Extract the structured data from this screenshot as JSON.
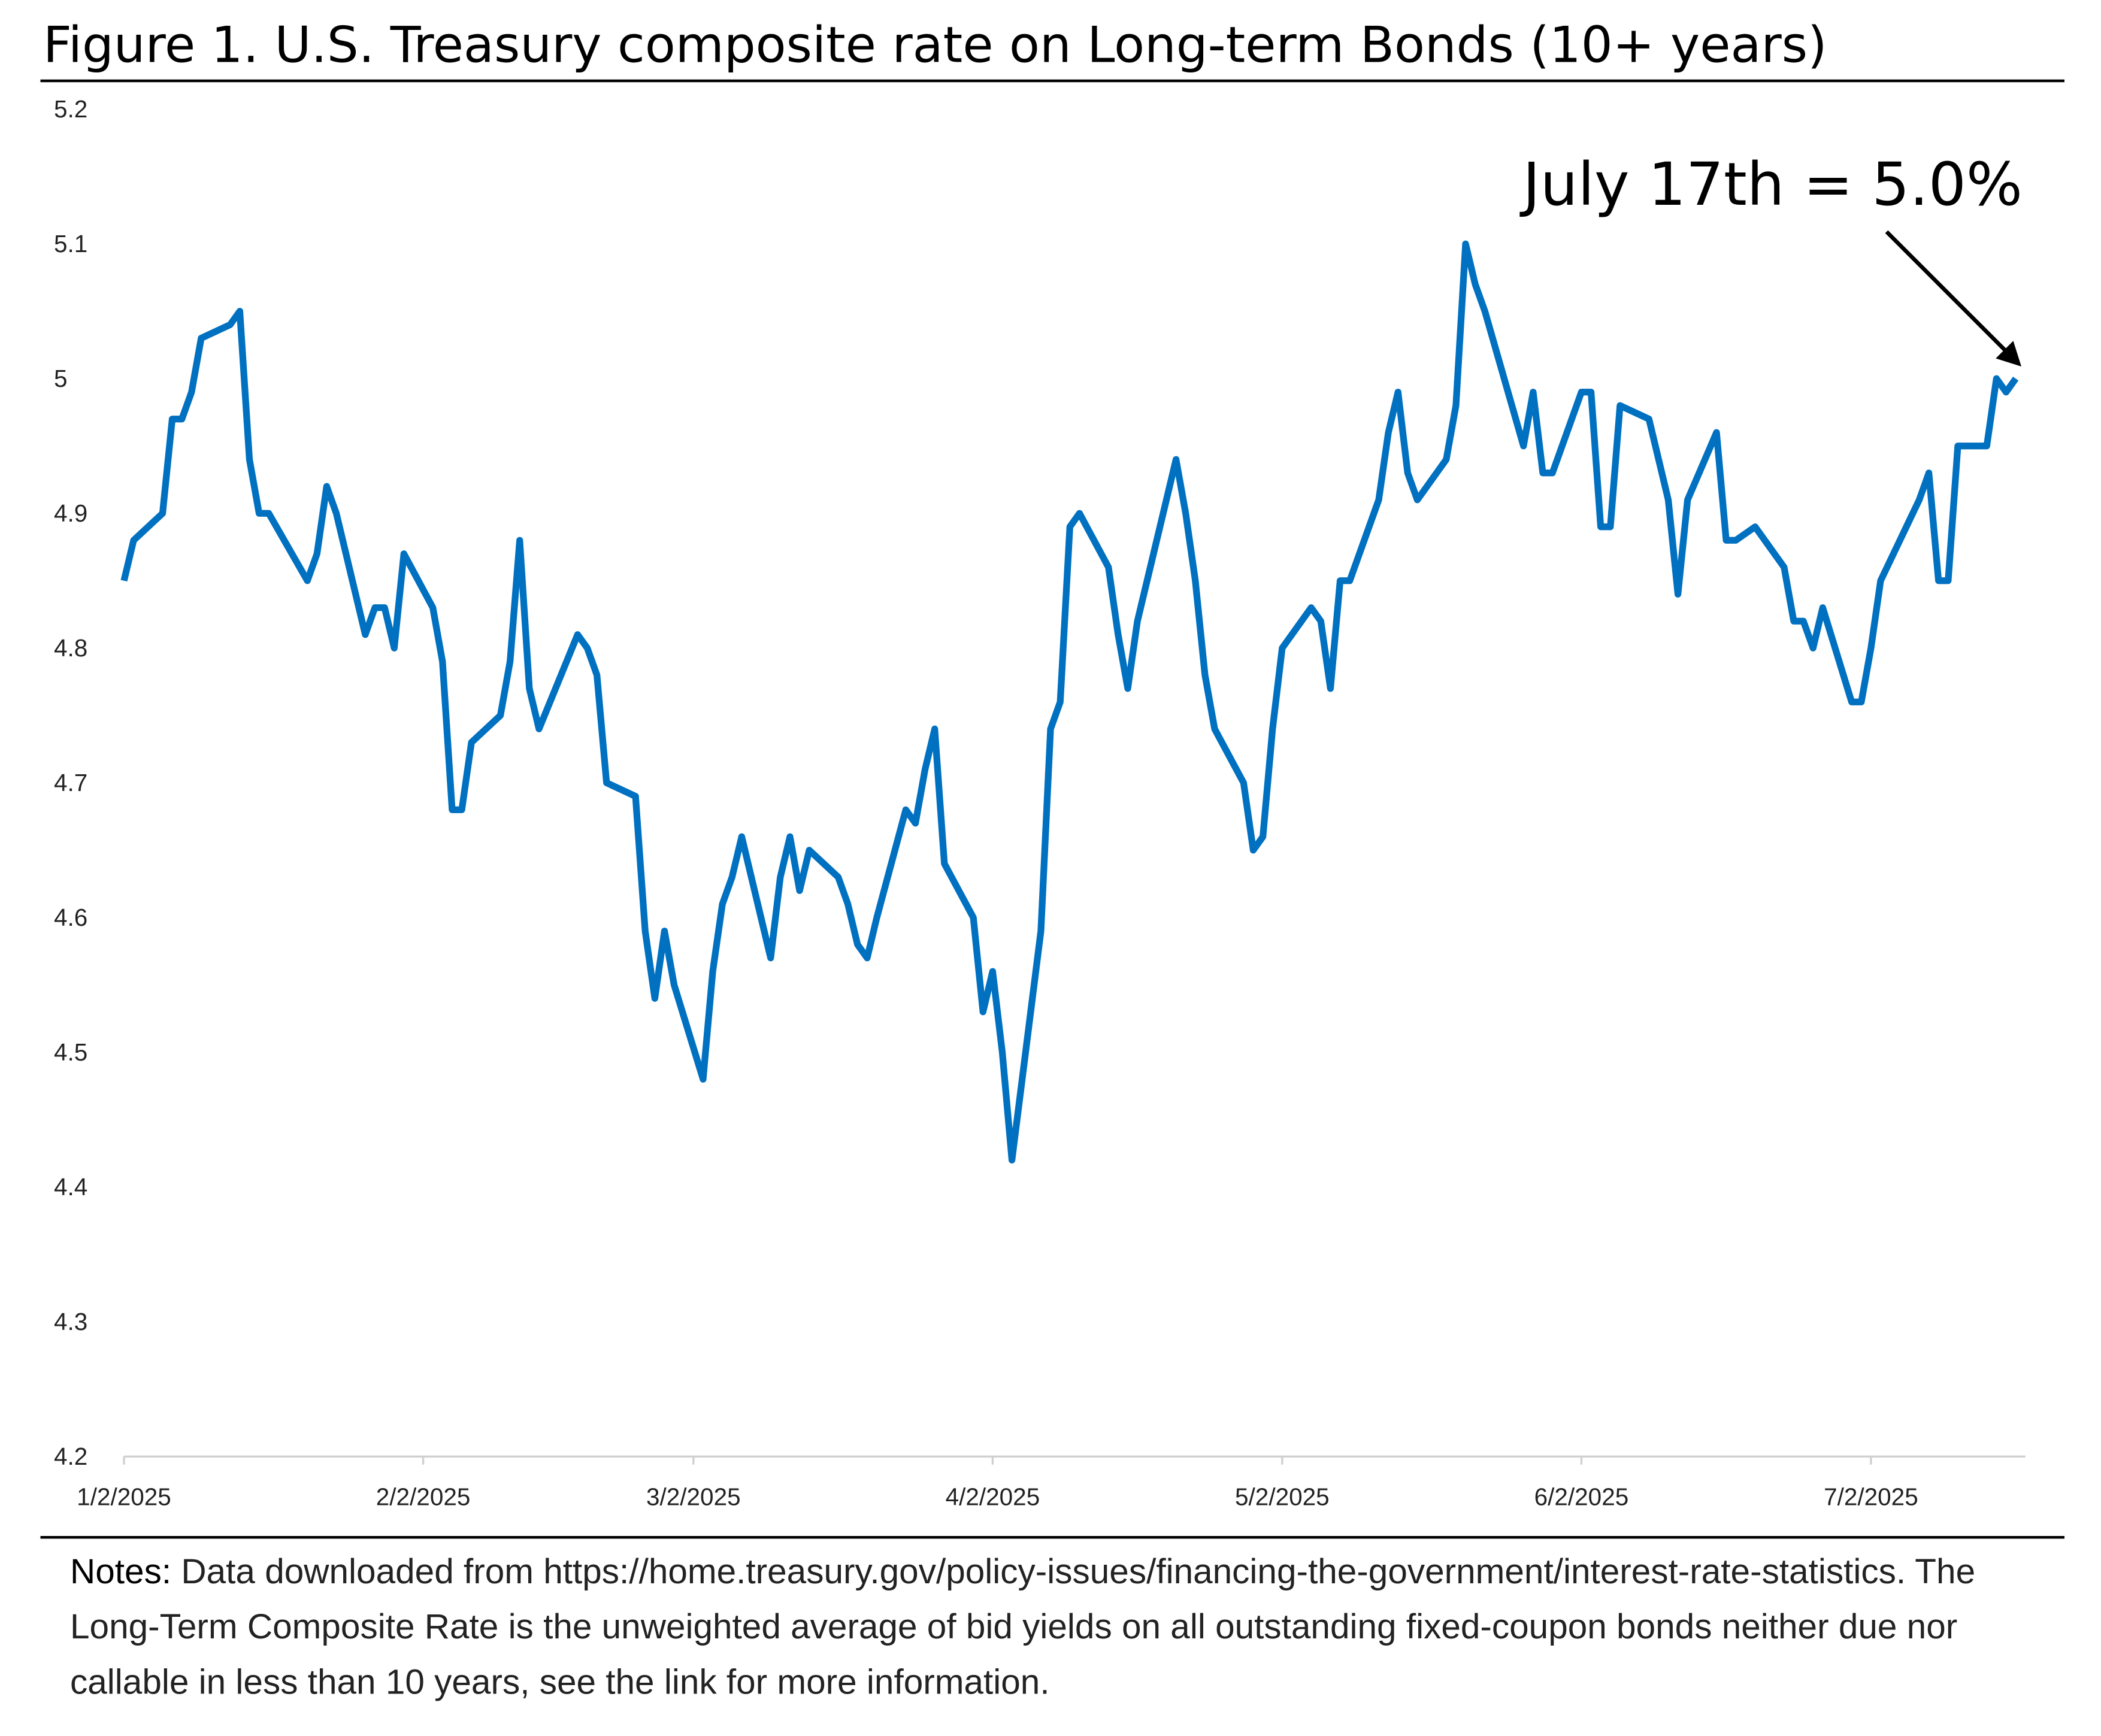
{
  "chart_data": {
    "type": "line",
    "title": "Figure 1. U.S. Treasury composite rate on Long-term Bonds (10+ years)",
    "annotation": "July 17th = 5.0%",
    "notes": {
      "label": "Notes:",
      "text": "Data downloaded from https://home.treasury.gov/policy-issues/financing-the-government/interest-rate-statistics. The Long-Term Composite Rate is the unweighted average of bid yields on all outstanding fixed-coupon bonds neither due nor callable in less than 10 years, see the link for more information."
    },
    "grid": false,
    "xlim": [
      "2025-01-02",
      "2025-07-18"
    ],
    "xticks": [
      {
        "value": "2025-01-02",
        "label": "1/2/2025"
      },
      {
        "value": "2025-02-02",
        "label": "2/2/2025"
      },
      {
        "value": "2025-03-02",
        "label": "3/2/2025"
      },
      {
        "value": "2025-04-02",
        "label": "4/2/2025"
      },
      {
        "value": "2025-05-02",
        "label": "5/2/2025"
      },
      {
        "value": "2025-06-02",
        "label": "6/2/2025"
      },
      {
        "value": "2025-07-02",
        "label": "7/2/2025"
      }
    ],
    "ylim": [
      4.2,
      5.2
    ],
    "yticks": [
      4.2,
      4.3,
      4.4,
      4.5,
      4.6,
      4.7,
      4.8,
      4.9,
      5,
      5.1,
      5.2
    ],
    "x": [
      "2025-01-02",
      "2025-01-03",
      "2025-01-06",
      "2025-01-07",
      "2025-01-08",
      "2025-01-09",
      "2025-01-10",
      "2025-01-13",
      "2025-01-14",
      "2025-01-15",
      "2025-01-16",
      "2025-01-17",
      "2025-01-21",
      "2025-01-22",
      "2025-01-23",
      "2025-01-24",
      "2025-01-27",
      "2025-01-28",
      "2025-01-29",
      "2025-01-30",
      "2025-01-31",
      "2025-02-03",
      "2025-02-04",
      "2025-02-05",
      "2025-02-06",
      "2025-02-07",
      "2025-02-10",
      "2025-02-11",
      "2025-02-12",
      "2025-02-13",
      "2025-02-14",
      "2025-02-18",
      "2025-02-19",
      "2025-02-20",
      "2025-02-21",
      "2025-02-24",
      "2025-02-25",
      "2025-02-26",
      "2025-02-27",
      "2025-02-28",
      "2025-03-03",
      "2025-03-04",
      "2025-03-05",
      "2025-03-06",
      "2025-03-07",
      "2025-03-10",
      "2025-03-11",
      "2025-03-12",
      "2025-03-13",
      "2025-03-14",
      "2025-03-17",
      "2025-03-18",
      "2025-03-19",
      "2025-03-20",
      "2025-03-21",
      "2025-03-24",
      "2025-03-25",
      "2025-03-26",
      "2025-03-27",
      "2025-03-28",
      "2025-03-31",
      "2025-04-01",
      "2025-04-02",
      "2025-04-03",
      "2025-04-04",
      "2025-04-07",
      "2025-04-08",
      "2025-04-09",
      "2025-04-10",
      "2025-04-11",
      "2025-04-14",
      "2025-04-15",
      "2025-04-16",
      "2025-04-17",
      "2025-04-21",
      "2025-04-22",
      "2025-04-23",
      "2025-04-24",
      "2025-04-25",
      "2025-04-28",
      "2025-04-29",
      "2025-04-30",
      "2025-05-01",
      "2025-05-02",
      "2025-05-05",
      "2025-05-06",
      "2025-05-07",
      "2025-05-08",
      "2025-05-09",
      "2025-05-12",
      "2025-05-13",
      "2025-05-14",
      "2025-05-15",
      "2025-05-16",
      "2025-05-19",
      "2025-05-20",
      "2025-05-21",
      "2025-05-22",
      "2025-05-23",
      "2025-05-27",
      "2025-05-28",
      "2025-05-29",
      "2025-05-30",
      "2025-06-02",
      "2025-06-03",
      "2025-06-04",
      "2025-06-05",
      "2025-06-06",
      "2025-06-09",
      "2025-06-10",
      "2025-06-11",
      "2025-06-12",
      "2025-06-13",
      "2025-06-16",
      "2025-06-17",
      "2025-06-18",
      "2025-06-20",
      "2025-06-23",
      "2025-06-24",
      "2025-06-25",
      "2025-06-26",
      "2025-06-27",
      "2025-06-30",
      "2025-07-01",
      "2025-07-02",
      "2025-07-03",
      "2025-07-07",
      "2025-07-08",
      "2025-07-09",
      "2025-07-10",
      "2025-07-11",
      "2025-07-14",
      "2025-07-15",
      "2025-07-16",
      "2025-07-17"
    ],
    "series": [
      {
        "name": "Long-term composite rate",
        "color": "#0070c0",
        "values": [
          4.85,
          4.88,
          4.9,
          4.97,
          4.97,
          4.99,
          5.03,
          5.04,
          5.05,
          4.94,
          4.9,
          4.9,
          4.85,
          4.87,
          4.92,
          4.9,
          4.81,
          4.83,
          4.83,
          4.8,
          4.87,
          4.83,
          4.79,
          4.68,
          4.68,
          4.73,
          4.75,
          4.79,
          4.88,
          4.77,
          4.74,
          4.81,
          4.8,
          4.78,
          4.7,
          4.69,
          4.59,
          4.54,
          4.59,
          4.55,
          4.48,
          4.56,
          4.61,
          4.63,
          4.66,
          4.57,
          4.63,
          4.66,
          4.62,
          4.65,
          4.63,
          4.61,
          4.58,
          4.57,
          4.6,
          4.68,
          4.67,
          4.71,
          4.74,
          4.64,
          4.6,
          4.53,
          4.56,
          4.5,
          4.42,
          4.59,
          4.74,
          4.76,
          4.89,
          4.9,
          4.86,
          4.81,
          4.77,
          4.82,
          4.94,
          4.9,
          4.85,
          4.78,
          4.74,
          4.7,
          4.65,
          4.66,
          4.74,
          4.8,
          4.83,
          4.82,
          4.77,
          4.85,
          4.85,
          4.91,
          4.96,
          4.99,
          4.93,
          4.91,
          4.94,
          4.98,
          5.1,
          5.07,
          5.05,
          4.95,
          4.99,
          4.93,
          4.93,
          4.99,
          4.99,
          4.89,
          4.89,
          4.98,
          4.97,
          4.94,
          4.91,
          4.84,
          4.91,
          4.96,
          4.88,
          4.88,
          4.89,
          4.86,
          4.82,
          4.82,
          4.8,
          4.83,
          4.76,
          4.76,
          4.8,
          4.85,
          4.91,
          4.93,
          4.85,
          4.85,
          4.95,
          4.95,
          5.0,
          4.99,
          5.0
        ]
      }
    ]
  }
}
